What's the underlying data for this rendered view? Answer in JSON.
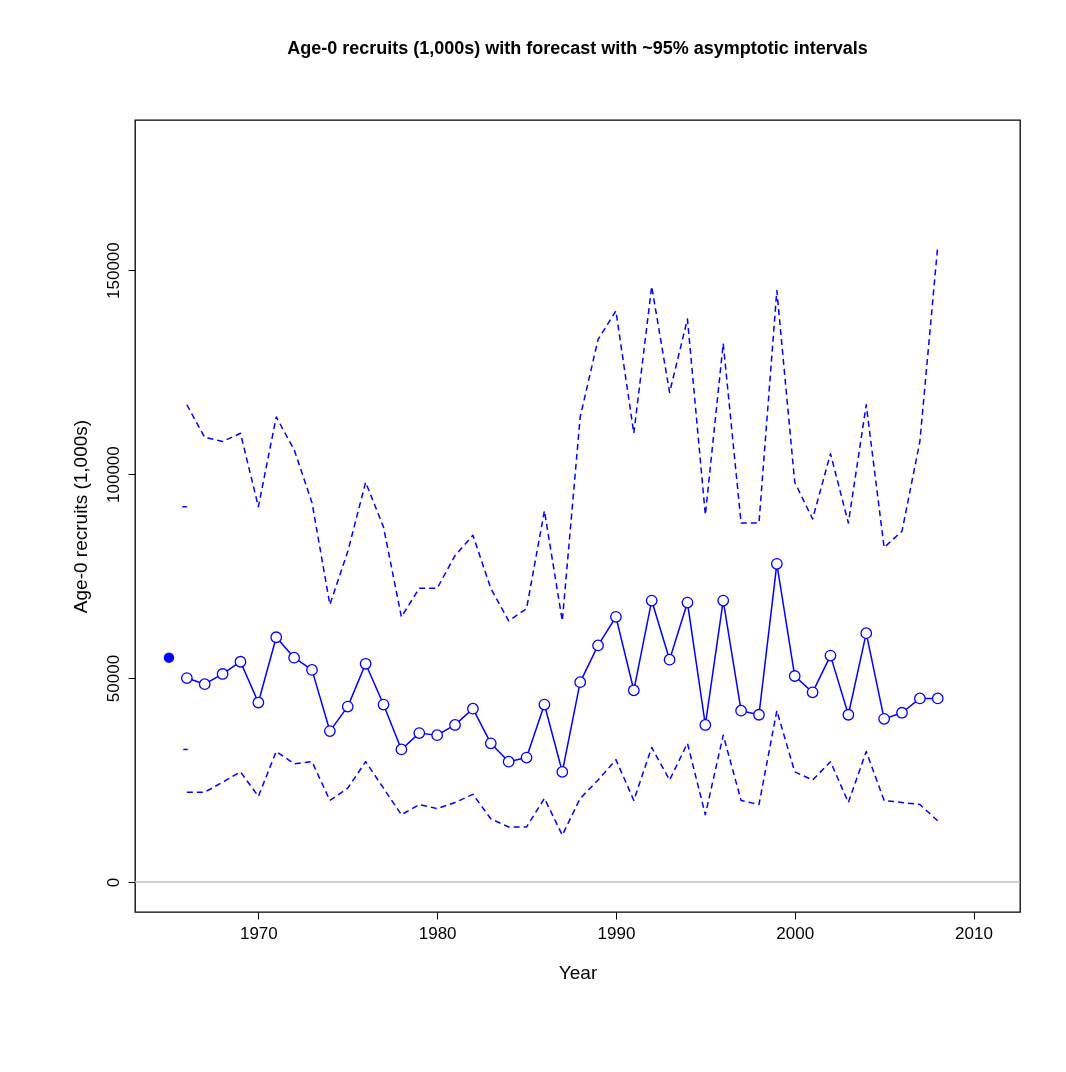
{
  "chart_data": {
    "type": "line",
    "title": "Age-0 recruits (1,000s) with forecast with ~95% asymptotic intervals",
    "xlabel": "Year",
    "ylabel": "Age-0 recruits (1,000s)",
    "xlim": [
      1963.1,
      2012.6
    ],
    "xticks": [
      1970,
      1980,
      1990,
      2000,
      2010
    ],
    "ylim": [
      -7350,
      186800
    ],
    "yticks": [
      0,
      50000,
      100000,
      150000
    ],
    "grid": false,
    "ref_lines": [
      {
        "axis": "y",
        "value": 0,
        "color": "#c0c0c0"
      }
    ],
    "series": [
      {
        "color": "#0000ff",
        "marker": "circle",
        "line_style": "solid",
        "x": [
          1966,
          1967,
          1968,
          1969,
          1970,
          1971,
          1972,
          1973,
          1974,
          1975,
          1976,
          1977,
          1978,
          1979,
          1980,
          1981,
          1982,
          1983,
          1984,
          1985,
          1986,
          1987,
          1988,
          1989,
          1990,
          1991,
          1992,
          1993,
          1994,
          1995,
          1996,
          1997,
          1998,
          1999,
          2000,
          2001,
          2002,
          2003,
          2004,
          2005,
          2006,
          2007,
          2008
        ],
        "values": [
          50000,
          48500,
          51000,
          54000,
          44000,
          60000,
          55000,
          52000,
          37000,
          43000,
          53500,
          43500,
          32500,
          36500,
          36000,
          38500,
          42500,
          34000,
          29500,
          30500,
          43500,
          27000,
          49000,
          58000,
          65000,
          47000,
          69000,
          54500,
          68500,
          38500,
          69000,
          42000,
          41000,
          78000,
          50500,
          46500,
          55500,
          41000,
          61000,
          40000,
          41500,
          45000,
          45000
        ]
      },
      {
        "type": "line",
        "color": "#0000ff",
        "line_style": "dashed",
        "x": [
          1966,
          1967,
          1968,
          1969,
          1970,
          1971,
          1972,
          1973,
          1974,
          1975,
          1976,
          1977,
          1978,
          1979,
          1980,
          1981,
          1982,
          1983,
          1984,
          1985,
          1986,
          1987,
          1988,
          1989,
          1990,
          1991,
          1992,
          1993,
          1994,
          1995,
          1996,
          1997,
          1998,
          1999,
          2000,
          2001,
          2002,
          2003,
          2004,
          2005,
          2006,
          2007,
          2008
        ],
        "values": [
          117000,
          109000,
          108000,
          110000,
          92000,
          114000,
          106000,
          93000,
          68000,
          81000,
          98000,
          87000,
          65000,
          72000,
          72000,
          80000,
          85000,
          72000,
          64000,
          67000,
          91000,
          64000,
          114000,
          133000,
          140000,
          110000,
          146000,
          120000,
          138000,
          90000,
          132000,
          88000,
          88000,
          145000,
          98000,
          89000,
          105000,
          88000,
          117000,
          82000,
          86000,
          108000,
          156000
        ]
      },
      {
        "type": "line",
        "color": "#0000ff",
        "line_style": "dashed",
        "x": [
          1966,
          1967,
          1968,
          1969,
          1970,
          1971,
          1972,
          1973,
          1974,
          1975,
          1976,
          1977,
          1978,
          1979,
          1980,
          1981,
          1982,
          1983,
          1984,
          1985,
          1986,
          1987,
          1988,
          1989,
          1990,
          1991,
          1992,
          1993,
          1994,
          1995,
          1996,
          1997,
          1998,
          1999,
          2000,
          2001,
          2002,
          2003,
          2004,
          2005,
          2006,
          2007,
          2008
        ],
        "values": [
          22000,
          22000,
          24500,
          27000,
          21000,
          32000,
          29000,
          29500,
          20000,
          23000,
          29500,
          23000,
          16500,
          19000,
          18000,
          19500,
          21500,
          15500,
          13500,
          13500,
          20500,
          11500,
          20500,
          25000,
          30000,
          20000,
          33000,
          25000,
          34000,
          16500,
          36000,
          20000,
          19000,
          42000,
          27000,
          25000,
          29500,
          19500,
          32000,
          20000,
          19500,
          19000,
          15000
        ]
      },
      {
        "type": "line",
        "color": "#0000ff",
        "line_style": "solid",
        "x": [
          1965.75,
          1966
        ],
        "values": [
          92000,
          92000
        ]
      },
      {
        "type": "line",
        "color": "#0000ff",
        "line_style": "solid",
        "x": [
          1965.8,
          1966.05
        ],
        "values": [
          32500,
          32500
        ]
      },
      {
        "type": "scatter",
        "color": "#0000ff",
        "marker": "circle",
        "x": [
          1965
        ],
        "values": [
          55000
        ]
      }
    ]
  }
}
